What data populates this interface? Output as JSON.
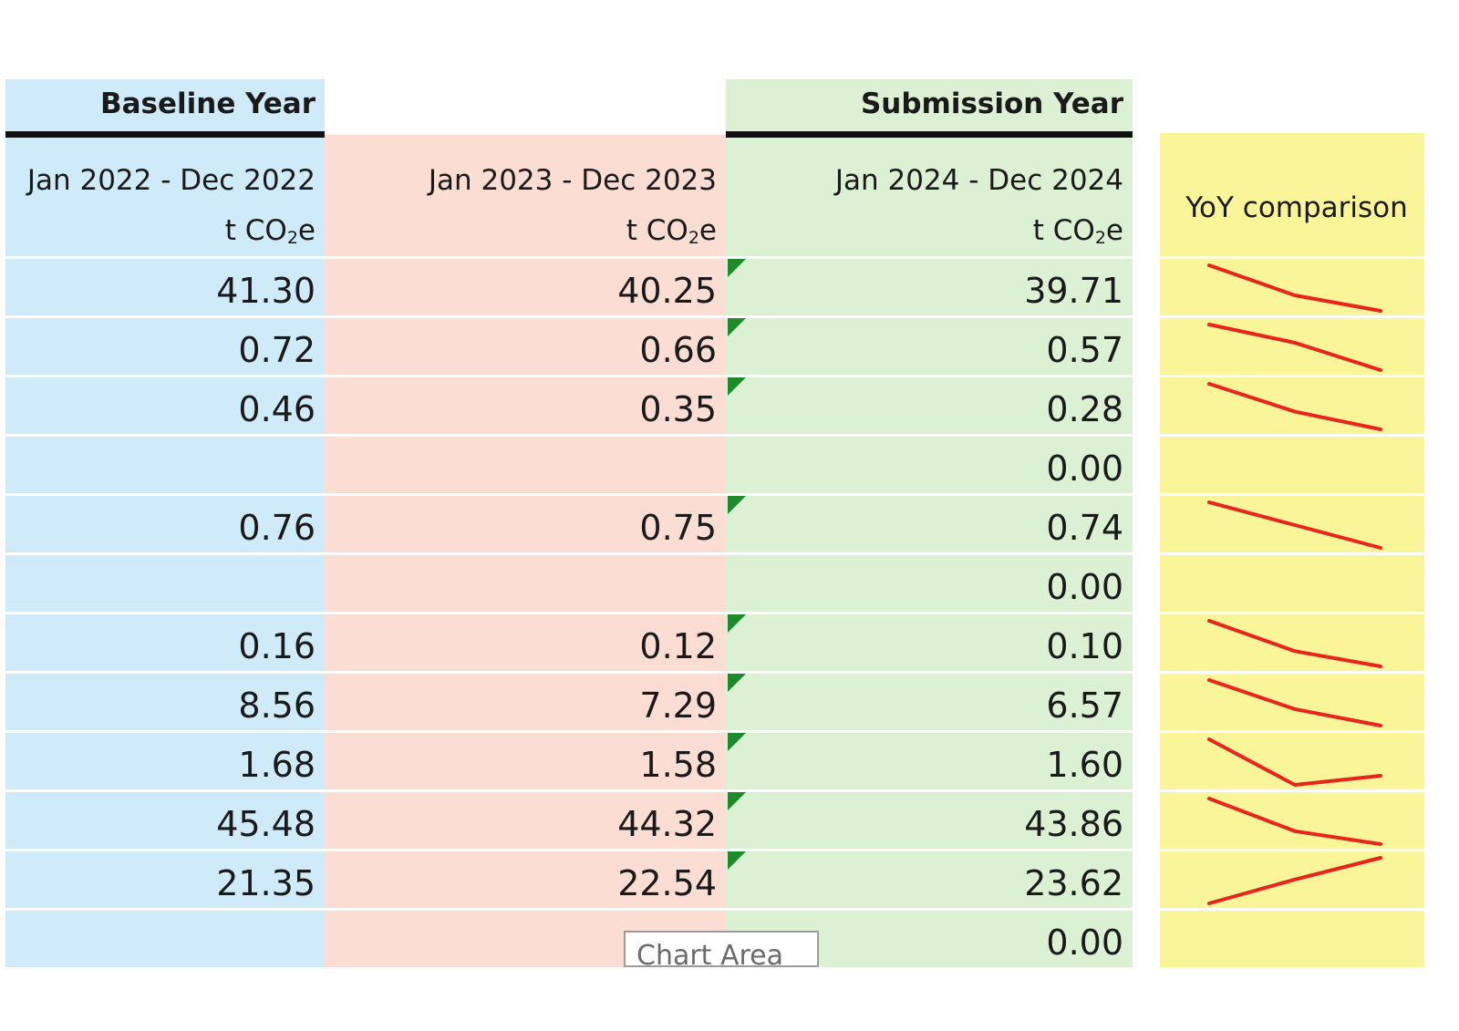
{
  "headers": {
    "baseline_label": "Baseline Year",
    "submission_label": "Submission Year",
    "yoy_label": "YoY comparison"
  },
  "periods": [
    {
      "range": "Jan 2022 - Dec 2022",
      "unit_pre": "t CO",
      "unit_sub": "2",
      "unit_post": "e"
    },
    {
      "range": "Jan 2023 - Dec 2023",
      "unit_pre": "t CO",
      "unit_sub": "2",
      "unit_post": "e"
    },
    {
      "range": "Jan 2024 - Dec 2024",
      "unit_pre": "t CO",
      "unit_sub": "2",
      "unit_post": "e"
    }
  ],
  "rows": [
    {
      "y2022": "41.30",
      "y2023": "40.25",
      "y2024": "39.71",
      "flag": true
    },
    {
      "y2022": "0.72",
      "y2023": "0.66",
      "y2024": "0.57",
      "flag": true
    },
    {
      "y2022": "0.46",
      "y2023": "0.35",
      "y2024": "0.28",
      "flag": true
    },
    {
      "y2022": "",
      "y2023": "",
      "y2024": "0.00",
      "flag": false
    },
    {
      "y2022": "0.76",
      "y2023": "0.75",
      "y2024": "0.74",
      "flag": true
    },
    {
      "y2022": "",
      "y2023": "",
      "y2024": "0.00",
      "flag": false
    },
    {
      "y2022": "0.16",
      "y2023": "0.12",
      "y2024": "0.10",
      "flag": true
    },
    {
      "y2022": "8.56",
      "y2023": "7.29",
      "y2024": "6.57",
      "flag": true
    },
    {
      "y2022": "1.68",
      "y2023": "1.58",
      "y2024": "1.60",
      "flag": true
    },
    {
      "y2022": "45.48",
      "y2023": "44.32",
      "y2024": "43.86",
      "flag": true
    },
    {
      "y2022": "21.35",
      "y2023": "22.54",
      "y2024": "23.62",
      "flag": true
    },
    {
      "y2022": "",
      "y2023": "",
      "y2024": "0.00",
      "flag": false
    }
  ],
  "tooltip": {
    "text": "Chart Area"
  },
  "colors": {
    "baseline": "#cfeaf8",
    "mid": "#fbddd3",
    "submission": "#dcf0d4",
    "yoy": "#fbf59a",
    "sparkline": "#e8251d",
    "flag": "#1e8a2b"
  }
}
